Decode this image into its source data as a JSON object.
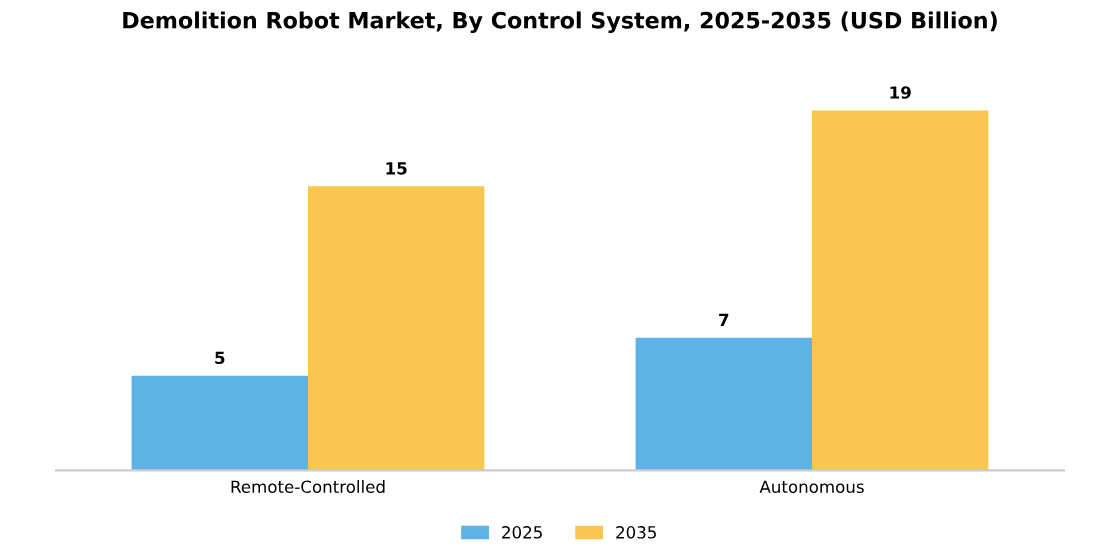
{
  "chart_data": {
    "type": "bar",
    "title": "Demolition Robot Market, By Control System, 2025-2035 (USD Billion)",
    "categories": [
      "Remote-Controlled",
      "Autonomous"
    ],
    "series": [
      {
        "name": "2025",
        "color": "#5db3e6",
        "values": [
          5,
          7
        ]
      },
      {
        "name": "2035",
        "color": "#f9c74f",
        "values": [
          15,
          19
        ]
      }
    ],
    "data_labels": true,
    "legend": "bottom"
  }
}
